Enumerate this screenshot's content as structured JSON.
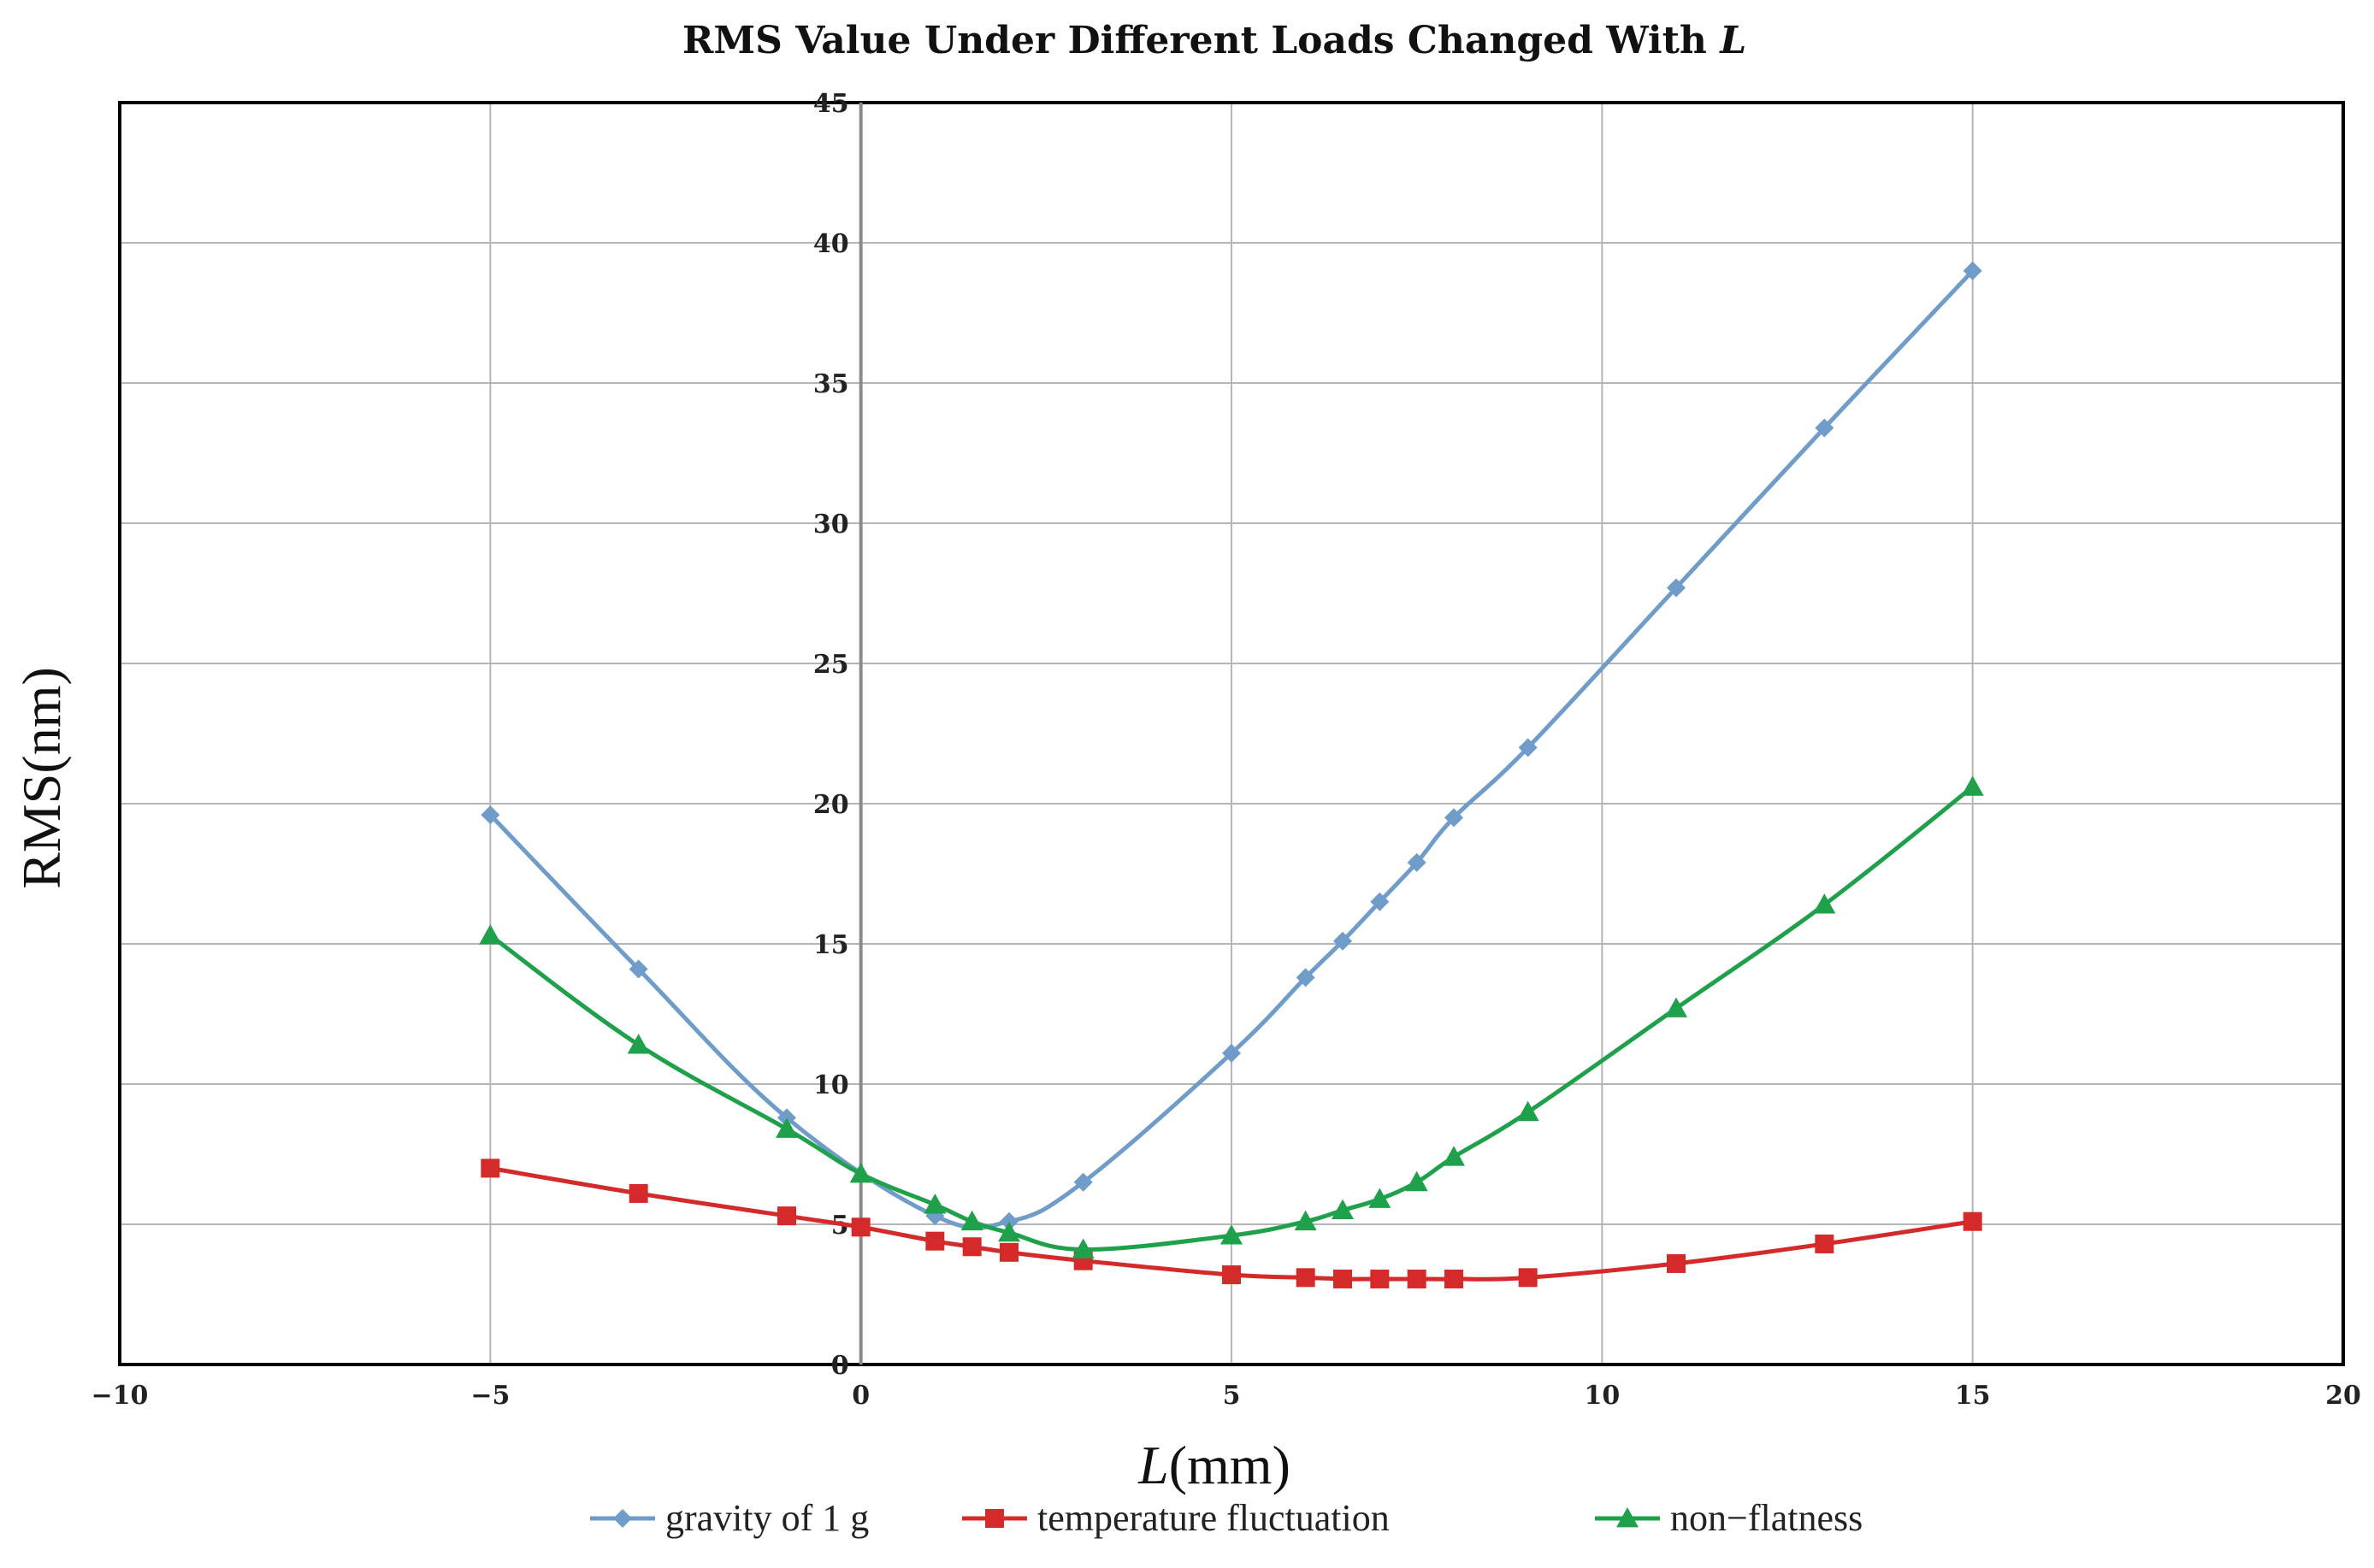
{
  "chart_data": {
    "type": "line",
    "title": "RMS Value Under Different Loads Changed With ",
    "title_var": "L",
    "xlabel_var": "L",
    "xlabel_unit": "(mm)",
    "ylabel": "RMS(nm)",
    "xlim": [
      -10,
      20
    ],
    "ylim": [
      0,
      45
    ],
    "x_ticks": [
      -10,
      -5,
      0,
      5,
      10,
      15,
      20
    ],
    "x_tick_labels": [
      "−10",
      "−5",
      "0",
      "5",
      "10",
      "15",
      "20"
    ],
    "y_ticks": [
      0,
      5,
      10,
      15,
      20,
      25,
      30,
      35,
      40,
      45
    ],
    "y_tick_labels": [
      "0",
      "5",
      "10",
      "15",
      "20",
      "25",
      "30",
      "35",
      "40",
      "45"
    ],
    "y_tick_labels_shown": [
      "0",
      "5",
      "10",
      "15",
      "20",
      "25",
      "30",
      "35",
      "40",
      "45"
    ],
    "grid": true,
    "legend_position": "bottom",
    "series": [
      {
        "name": "gravity of 1 g",
        "color": "#6f9cc8",
        "marker": "diamond",
        "x": [
          -5,
          -3,
          -1,
          1,
          2,
          3,
          5,
          6,
          6.5,
          7,
          7.5,
          8,
          9,
          11,
          13,
          15
        ],
        "y": [
          19.6,
          14.1,
          8.8,
          5.3,
          5.1,
          6.5,
          11.1,
          13.8,
          15.1,
          16.5,
          17.9,
          19.5,
          22.0,
          27.7,
          33.4,
          39.0
        ]
      },
      {
        "name": "temperature fluctuation",
        "color": "#d42a2a",
        "marker": "square",
        "x": [
          -5,
          -3,
          -1,
          0,
          1,
          1.5,
          2,
          3,
          5,
          6,
          6.5,
          7,
          7.5,
          8,
          9,
          11,
          13,
          15
        ],
        "y": [
          7.0,
          6.1,
          5.3,
          4.9,
          4.4,
          4.2,
          4.0,
          3.7,
          3.2,
          3.1,
          3.05,
          3.05,
          3.05,
          3.05,
          3.1,
          3.6,
          4.3,
          5.1
        ]
      },
      {
        "name": "non−flatness",
        "color": "#1fa14b",
        "marker": "triangle",
        "x": [
          -5,
          -3,
          -1,
          0,
          1,
          1.5,
          2,
          3,
          5,
          6,
          6.5,
          7,
          7.5,
          8,
          9,
          11,
          13,
          15
        ],
        "y": [
          15.3,
          11.4,
          8.4,
          6.8,
          5.7,
          5.1,
          4.7,
          4.1,
          4.6,
          5.1,
          5.5,
          5.9,
          6.5,
          7.4,
          9.0,
          12.7,
          16.4,
          20.6
        ]
      }
    ]
  }
}
